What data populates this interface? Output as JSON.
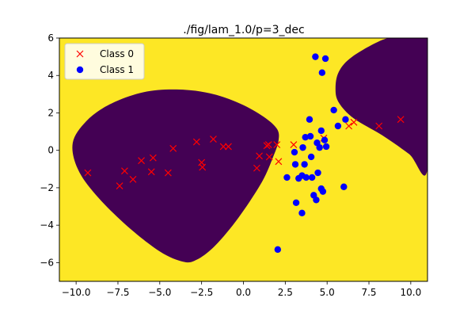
{
  "chart_data": {
    "type": "scatter",
    "title": "./fig/lam_1.0/p=3_dec",
    "xlabel": "",
    "ylabel": "",
    "xlim": [
      -11,
      11
    ],
    "ylim": [
      -7,
      6
    ],
    "x_ticks": [
      -10.0,
      -7.5,
      -5.0,
      -2.5,
      0.0,
      2.5,
      5.0,
      7.5,
      10.0
    ],
    "x_tick_labels": [
      "−10.0",
      "−7.5",
      "−5.0",
      "−2.5",
      "0.0",
      "2.5",
      "5.0",
      "7.5",
      "10.0"
    ],
    "y_ticks": [
      -6,
      -4,
      -2,
      0,
      2,
      4,
      6
    ],
    "y_tick_labels": [
      "−6",
      "−4",
      "−2",
      "0",
      "2",
      "4",
      "6"
    ],
    "grid": false,
    "legend_position": "top-left",
    "background_colors": {
      "class_1_region": "#fde725",
      "class_0_region": "#440154"
    },
    "decision_regions": [
      {
        "name": "left-class0-region",
        "outline": [
          [
            -10.2,
            0.4
          ],
          [
            -9.4,
            1.55
          ],
          [
            -8.0,
            2.45
          ],
          [
            -6.0,
            3.1
          ],
          [
            -4.0,
            3.25
          ],
          [
            -2.0,
            3.05
          ],
          [
            -0.2,
            2.5
          ],
          [
            1.2,
            1.8
          ],
          [
            2.0,
            1.15
          ],
          [
            2.1,
            0.55
          ],
          [
            1.8,
            -0.3
          ],
          [
            1.1,
            -1.7
          ],
          [
            -0.3,
            -3.6
          ],
          [
            -1.7,
            -5.1
          ],
          [
            -2.8,
            -5.85
          ],
          [
            -3.6,
            -5.95
          ],
          [
            -5.0,
            -5.4
          ],
          [
            -7.0,
            -4.0
          ],
          [
            -8.8,
            -2.4
          ],
          [
            -9.9,
            -1.0
          ]
        ]
      },
      {
        "name": "right-class0-region",
        "outline": [
          [
            9.3,
            6.0
          ],
          [
            11.0,
            6.0
          ],
          [
            11.0,
            -1.0
          ],
          [
            9.9,
            -0.2
          ],
          [
            8.3,
            0.8
          ],
          [
            6.6,
            1.7
          ],
          [
            5.7,
            2.55
          ],
          [
            5.5,
            3.3
          ],
          [
            5.7,
            4.2
          ],
          [
            6.5,
            5.0
          ],
          [
            8.3,
            5.9
          ]
        ]
      }
    ],
    "series": [
      {
        "name": "Class 0",
        "marker": "x",
        "color": "#ff0000",
        "points": [
          [
            -9.3,
            -1.2
          ],
          [
            -7.4,
            -1.9
          ],
          [
            -7.1,
            -1.1
          ],
          [
            -6.6,
            -1.55
          ],
          [
            -6.1,
            -0.55
          ],
          [
            -5.5,
            -1.15
          ],
          [
            -5.4,
            -0.4
          ],
          [
            -4.5,
            -1.2
          ],
          [
            -4.2,
            0.1
          ],
          [
            -2.8,
            0.45
          ],
          [
            -2.5,
            -0.65
          ],
          [
            -2.45,
            -0.9
          ],
          [
            -1.8,
            0.6
          ],
          [
            -1.2,
            0.2
          ],
          [
            -0.9,
            0.2
          ],
          [
            0.8,
            -0.95
          ],
          [
            0.95,
            -0.3
          ],
          [
            1.4,
            0.25
          ],
          [
            1.5,
            0.3
          ],
          [
            1.55,
            -0.35
          ],
          [
            2.0,
            0.3
          ],
          [
            2.1,
            -0.6
          ],
          [
            3.0,
            0.3
          ],
          [
            4.8,
            0.65
          ],
          [
            6.3,
            1.3
          ],
          [
            6.6,
            1.5
          ],
          [
            8.1,
            1.3
          ],
          [
            9.4,
            1.65
          ]
        ]
      },
      {
        "name": "Class 1",
        "marker": "o",
        "color": "#0000ff",
        "points": [
          [
            4.3,
            5.0
          ],
          [
            4.9,
            4.9
          ],
          [
            4.7,
            4.15
          ],
          [
            2.05,
            -5.3
          ],
          [
            2.6,
            -1.45
          ],
          [
            3.05,
            -0.1
          ],
          [
            3.1,
            -0.75
          ],
          [
            3.15,
            -2.8
          ],
          [
            3.3,
            -1.5
          ],
          [
            3.5,
            -3.35
          ],
          [
            3.5,
            -1.35
          ],
          [
            3.55,
            0.15
          ],
          [
            3.65,
            -0.75
          ],
          [
            3.7,
            0.7
          ],
          [
            3.75,
            -1.45
          ],
          [
            3.95,
            1.65
          ],
          [
            4.0,
            0.75
          ],
          [
            4.05,
            -0.35
          ],
          [
            4.1,
            -1.45
          ],
          [
            4.2,
            -2.4
          ],
          [
            4.35,
            -2.65
          ],
          [
            4.4,
            0.4
          ],
          [
            4.45,
            -1.2
          ],
          [
            4.55,
            0.15
          ],
          [
            4.65,
            -2.05
          ],
          [
            4.65,
            1.05
          ],
          [
            4.75,
            -2.2
          ],
          [
            4.85,
            0.55
          ],
          [
            4.95,
            0.2
          ],
          [
            5.4,
            2.15
          ],
          [
            5.65,
            1.3
          ],
          [
            6.0,
            -1.95
          ],
          [
            6.1,
            1.65
          ]
        ]
      }
    ]
  }
}
